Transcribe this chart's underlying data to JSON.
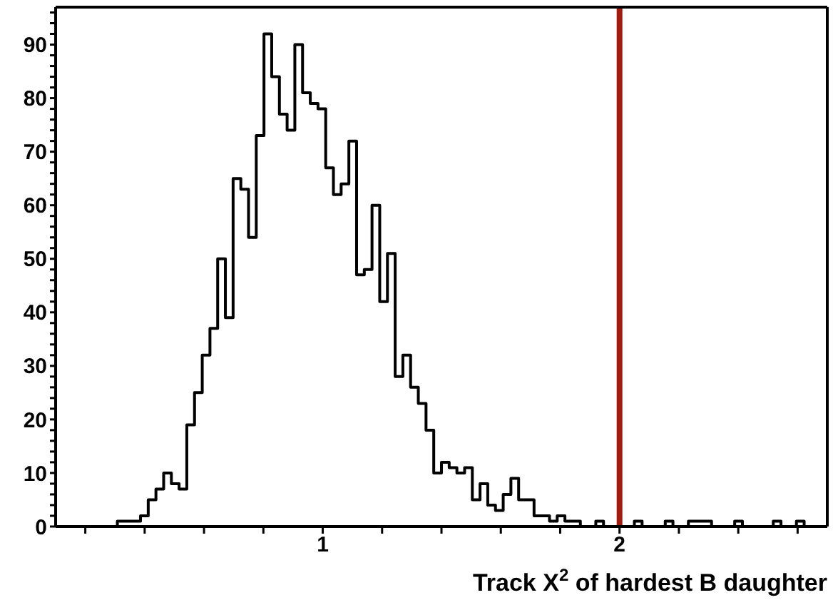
{
  "chart_data": {
    "type": "histogram",
    "xlabel": "Track X$^{2}$ of hardest B daughter",
    "bins": [
      0.1,
      0.126,
      0.152,
      0.178,
      0.204,
      0.23,
      0.256,
      0.282,
      0.308,
      0.334,
      0.36,
      0.386,
      0.412,
      0.438,
      0.464,
      0.49,
      0.516,
      0.542,
      0.568,
      0.594,
      0.62,
      0.646,
      0.672,
      0.698,
      0.724,
      0.75,
      0.776,
      0.802,
      0.828,
      0.854,
      0.88,
      0.906,
      0.932,
      0.958,
      0.984,
      1.01,
      1.036,
      1.062,
      1.088,
      1.114,
      1.14,
      1.166,
      1.192,
      1.218,
      1.244,
      1.27,
      1.296,
      1.322,
      1.348,
      1.374,
      1.4,
      1.426,
      1.452,
      1.478,
      1.504,
      1.53,
      1.556,
      1.582,
      1.608,
      1.634,
      1.66,
      1.686,
      1.712,
      1.738,
      1.764,
      1.79,
      1.816,
      1.842,
      1.868,
      1.894,
      1.92,
      1.946,
      1.972,
      1.998,
      2.024,
      2.05,
      2.076,
      2.102,
      2.128,
      2.154,
      2.18,
      2.206,
      2.232,
      2.258,
      2.284,
      2.31,
      2.336,
      2.362,
      2.388,
      2.414,
      2.44,
      2.466,
      2.492,
      2.518,
      2.544,
      2.57,
      2.596,
      2.622,
      2.648,
      2.674,
      2.7
    ],
    "values": [
      0,
      0,
      0,
      0,
      0,
      0,
      0,
      0,
      1,
      1,
      1,
      2,
      5,
      7,
      10,
      8,
      7,
      19,
      25,
      32,
      37,
      50,
      39,
      65,
      63,
      54,
      73,
      92,
      84,
      77,
      74,
      90,
      81,
      79,
      78,
      67,
      62,
      64,
      72,
      47,
      48,
      60,
      42,
      51,
      28,
      32,
      26,
      23,
      18,
      10,
      12,
      11,
      10,
      11,
      5,
      8,
      4,
      3,
      6,
      9,
      5,
      5,
      2,
      2,
      1,
      2,
      1,
      1,
      0,
      0,
      1,
      0,
      0,
      0,
      0,
      1,
      0,
      0,
      0,
      1,
      0,
      0,
      1,
      1,
      1,
      0,
      0,
      0,
      1,
      0,
      0,
      0,
      0,
      1,
      0,
      0,
      1,
      0,
      0,
      0
    ],
    "color": "#000000",
    "xlim": [
      0.1,
      2.7
    ],
    "xticks": [
      {
        "value": 0.2,
        "label": null
      },
      {
        "value": 0.4,
        "label": null
      },
      {
        "value": 0.6,
        "label": null
      },
      {
        "value": 0.8,
        "label": null
      },
      1,
      {
        "value": 1.2,
        "label": null
      },
      {
        "value": 1.4,
        "label": null
      },
      {
        "value": 1.6,
        "label": null
      },
      {
        "value": 1.8,
        "label": null
      },
      2,
      {
        "value": 2.2,
        "label": null
      },
      {
        "value": 2.4,
        "label": null
      },
      {
        "value": 2.6,
        "label": null
      }
    ],
    "ylim": [
      0,
      97
    ],
    "yticks": [
      0,
      {
        "value": 2,
        "label": null
      },
      {
        "value": 4,
        "label": null
      },
      {
        "value": 6,
        "label": null
      },
      {
        "value": 8,
        "label": null
      },
      10,
      {
        "value": 12,
        "label": null
      },
      {
        "value": 14,
        "label": null
      },
      {
        "value": 16,
        "label": null
      },
      {
        "value": 18,
        "label": null
      },
      20,
      {
        "value": 22,
        "label": null
      },
      {
        "value": 24,
        "label": null
      },
      {
        "value": 26,
        "label": null
      },
      {
        "value": 28,
        "label": null
      },
      30,
      {
        "value": 32,
        "label": null
      },
      {
        "value": 34,
        "label": null
      },
      {
        "value": 36,
        "label": null
      },
      {
        "value": 38,
        "label": null
      },
      40,
      {
        "value": 42,
        "label": null
      },
      {
        "value": 44,
        "label": null
      },
      {
        "value": 46,
        "label": null
      },
      {
        "value": 48,
        "label": null
      },
      50,
      {
        "value": 52,
        "label": null
      },
      {
        "value": 54,
        "label": null
      },
      {
        "value": 56,
        "label": null
      },
      {
        "value": 58,
        "label": null
      },
      60,
      {
        "value": 62,
        "label": null
      },
      {
        "value": 64,
        "label": null
      },
      {
        "value": 66,
        "label": null
      },
      {
        "value": 68,
        "label": null
      },
      70,
      {
        "value": 72,
        "label": null
      },
      {
        "value": 74,
        "label": null
      },
      {
        "value": 76,
        "label": null
      },
      {
        "value": 78,
        "label": null
      },
      80,
      {
        "value": 82,
        "label": null
      },
      {
        "value": 84,
        "label": null
      },
      {
        "value": 86,
        "label": null
      },
      {
        "value": 88,
        "label": null
      },
      90,
      {
        "value": 92,
        "label": null
      },
      {
        "value": 94,
        "label": null
      },
      {
        "value": 96,
        "label": null
      }
    ],
    "ref_lines": [
      {
        "axis": "x",
        "value": 2,
        "color": "#a01c10"
      }
    ]
  }
}
